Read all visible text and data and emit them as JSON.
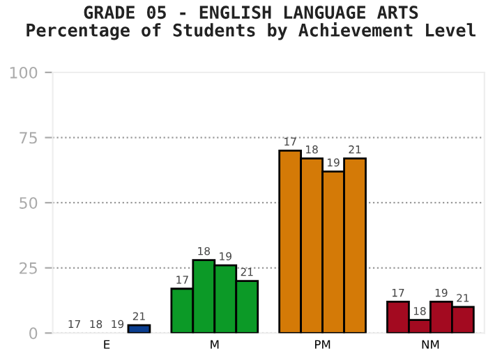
{
  "chart_data": {
    "type": "bar",
    "title": "GRADE 05 - ENGLISH LANGUAGE ARTS\nPercentage of Students by Achievement Level",
    "categories": [
      "E",
      "M",
      "PM",
      "NM"
    ],
    "series": [
      {
        "name": "17",
        "colors": [
          "#0a3d8f",
          "#0c9a27",
          "#d47a07",
          "#a30a20"
        ],
        "values": [
          0,
          17,
          70,
          12
        ]
      },
      {
        "name": "18",
        "colors": [
          "#0a3d8f",
          "#0c9a27",
          "#d47a07",
          "#a30a20"
        ],
        "values": [
          0,
          28,
          67,
          5
        ]
      },
      {
        "name": "19",
        "colors": [
          "#0a3d8f",
          "#0c9a27",
          "#d47a07",
          "#a30a20"
        ],
        "values": [
          0,
          26,
          62,
          12
        ]
      },
      {
        "name": "21",
        "colors": [
          "#0a3d8f",
          "#0c9a27",
          "#d47a07",
          "#a30a20"
        ],
        "values": [
          3,
          20,
          67,
          10
        ]
      }
    ],
    "ylim": [
      0,
      100
    ],
    "yticks": [
      0,
      25,
      50,
      75,
      100
    ],
    "grid": "y",
    "legend": false
  }
}
